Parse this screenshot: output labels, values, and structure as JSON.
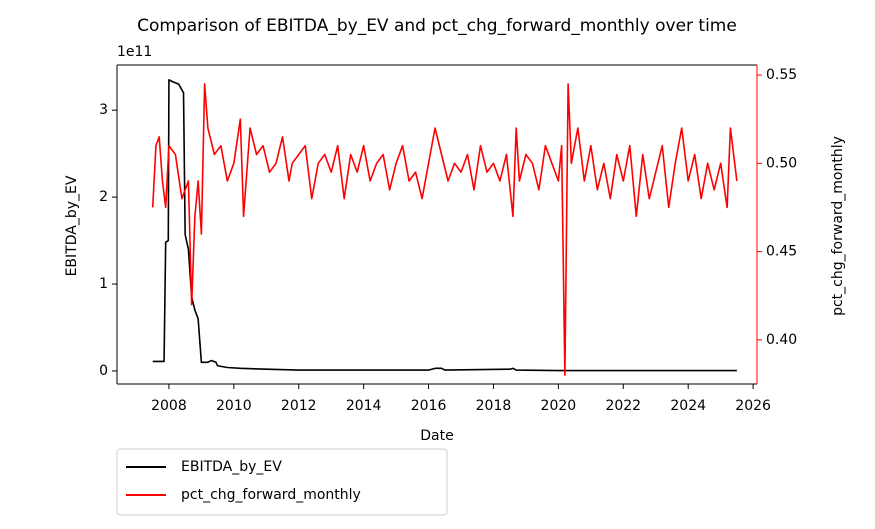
{
  "chart_data": {
    "type": "line",
    "title": "Comparison of EBITDA_by_EV and pct_chg_forward_monthly over time",
    "x_label": "Date",
    "y_label": "EBITDA_by_EV",
    "y_offset_label": "1e11",
    "y2_label": "pct_chg_forward_monthly",
    "y2_color": "#ff0000",
    "xlim": [
      2006.4,
      2026.12
    ],
    "xticks": [
      2008,
      2010,
      2012,
      2014,
      2016,
      2018,
      2020,
      2022,
      2024,
      2026
    ],
    "ylim": [
      -0.15,
      3.52
    ],
    "yticks": [
      0,
      1,
      2,
      3
    ],
    "y2lim": [
      0.375,
      0.5557
    ],
    "y2ticks": [
      {
        "value": 0.4,
        "label": "0.40"
      },
      0.45,
      {
        "value": 0.5,
        "label": "0.50"
      },
      0.55
    ],
    "legend": "below-left",
    "series": [
      {
        "name": "EBITDA_by_EV",
        "color": "#000000",
        "axis": "y",
        "x": [
          2007.5,
          2007.85,
          2007.9,
          2007.98,
          2008.0,
          2008.1,
          2008.3,
          2008.45,
          2008.5,
          2008.6,
          2008.7,
          2008.8,
          2008.9,
          2009.0,
          2009.2,
          2009.3,
          2009.45,
          2009.5,
          2009.8,
          2010.2,
          2011,
          2012,
          2014,
          2016,
          2016.2,
          2016.4,
          2016.5,
          2018.5,
          2018.6,
          2018.7,
          2020,
          2025.5
        ],
        "values": [
          0.11,
          0.11,
          1.48,
          1.5,
          3.35,
          3.33,
          3.3,
          3.2,
          1.57,
          1.4,
          0.85,
          0.7,
          0.6,
          0.1,
          0.1,
          0.12,
          0.1,
          0.06,
          0.04,
          0.03,
          0.02,
          0.01,
          0.01,
          0.01,
          0.03,
          0.03,
          0.01,
          0.02,
          0.03,
          0.01,
          0.005,
          0.005
        ]
      },
      {
        "name": "pct_chg_forward_monthly",
        "color": "#ff0000",
        "axis": "y2",
        "x": [
          2007.5,
          2007.6,
          2007.7,
          2007.8,
          2007.9,
          2008.0,
          2008.2,
          2008.4,
          2008.6,
          2008.7,
          2008.8,
          2008.9,
          2009.0,
          2009.1,
          2009.2,
          2009.4,
          2009.6,
          2009.8,
          2010.0,
          2010.2,
          2010.3,
          2010.5,
          2010.7,
          2010.9,
          2011.1,
          2011.3,
          2011.5,
          2011.7,
          2011.8,
          2012.0,
          2012.2,
          2012.4,
          2012.6,
          2012.8,
          2013.0,
          2013.2,
          2013.4,
          2013.6,
          2013.8,
          2014.0,
          2014.2,
          2014.4,
          2014.6,
          2014.8,
          2015.0,
          2015.2,
          2015.4,
          2015.6,
          2015.8,
          2016.0,
          2016.2,
          2016.4,
          2016.6,
          2016.8,
          2017.0,
          2017.2,
          2017.4,
          2017.6,
          2017.8,
          2018.0,
          2018.2,
          2018.4,
          2018.6,
          2018.7,
          2018.8,
          2019.0,
          2019.2,
          2019.4,
          2019.6,
          2019.8,
          2020.0,
          2020.1,
          2020.2,
          2020.3,
          2020.4,
          2020.6,
          2020.8,
          2021.0,
          2021.2,
          2021.4,
          2021.6,
          2021.8,
          2022.0,
          2022.2,
          2022.4,
          2022.6,
          2022.8,
          2023.0,
          2023.2,
          2023.4,
          2023.6,
          2023.8,
          2024.0,
          2024.2,
          2024.4,
          2024.6,
          2024.8,
          2025.0,
          2025.2,
          2025.3,
          2025.5
        ],
        "values": [
          0.475,
          0.51,
          0.515,
          0.49,
          0.475,
          0.51,
          0.505,
          0.48,
          0.49,
          0.42,
          0.47,
          0.49,
          0.46,
          0.545,
          0.52,
          0.505,
          0.51,
          0.49,
          0.5,
          0.525,
          0.47,
          0.52,
          0.505,
          0.51,
          0.495,
          0.5,
          0.515,
          0.49,
          0.5,
          0.505,
          0.51,
          0.48,
          0.5,
          0.505,
          0.495,
          0.51,
          0.48,
          0.505,
          0.495,
          0.51,
          0.49,
          0.5,
          0.505,
          0.485,
          0.5,
          0.51,
          0.49,
          0.495,
          0.48,
          0.5,
          0.52,
          0.505,
          0.49,
          0.5,
          0.495,
          0.505,
          0.485,
          0.51,
          0.495,
          0.5,
          0.49,
          0.505,
          0.47,
          0.52,
          0.49,
          0.505,
          0.5,
          0.485,
          0.51,
          0.5,
          0.49,
          0.51,
          0.38,
          0.545,
          0.5,
          0.52,
          0.49,
          0.51,
          0.485,
          0.5,
          0.48,
          0.505,
          0.49,
          0.51,
          0.47,
          0.505,
          0.48,
          0.495,
          0.51,
          0.475,
          0.5,
          0.52,
          0.49,
          0.505,
          0.48,
          0.5,
          0.485,
          0.5,
          0.475,
          0.52,
          0.49
        ]
      }
    ]
  }
}
